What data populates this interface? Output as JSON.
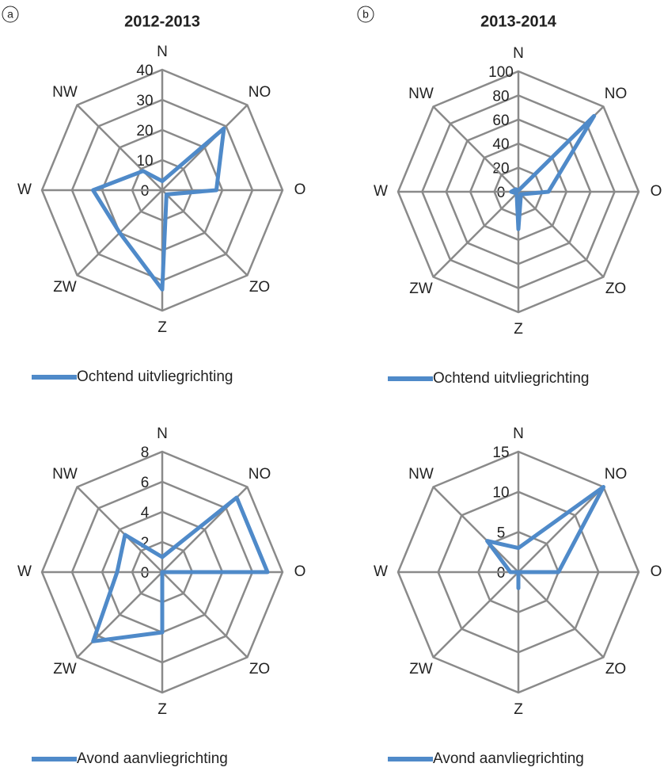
{
  "chart_data": [
    {
      "type": "radar",
      "panel_label": "a",
      "title": "2012-2013",
      "categories": [
        "N",
        "NO",
        "O",
        "ZO",
        "Z",
        "ZW",
        "W",
        "NW"
      ],
      "series": [
        {
          "name": "Ochtend uitvliegrichting",
          "color": "#4f8ac9",
          "values": [
            3,
            29,
            18,
            2,
            33,
            20,
            23,
            9
          ]
        }
      ],
      "rlim": [
        0,
        40
      ],
      "rticks": [
        0,
        10,
        20,
        30,
        40
      ]
    },
    {
      "type": "radar",
      "panel_label": "b",
      "title": "2013-2014",
      "categories": [
        "N",
        "NO",
        "O",
        "ZO",
        "Z",
        "ZW",
        "W",
        "NW"
      ],
      "series": [
        {
          "name": "Ochtend uitvliegrichting",
          "color": "#4f8ac9",
          "values": [
            1,
            89,
            25,
            3,
            31,
            2,
            6,
            3
          ]
        }
      ],
      "rlim": [
        0,
        100
      ],
      "rticks": [
        0,
        20,
        40,
        60,
        80,
        100
      ]
    },
    {
      "type": "radar",
      "categories": [
        "N",
        "NO",
        "O",
        "ZO",
        "Z",
        "ZW",
        "W",
        "NW"
      ],
      "series": [
        {
          "name": "Avond aanvliegrichting",
          "color": "#4f8ac9",
          "values": [
            1,
            7,
            7,
            0,
            4,
            6.5,
            3,
            3.5
          ]
        }
      ],
      "rlim": [
        0,
        8
      ],
      "rticks": [
        0,
        2,
        4,
        6,
        8
      ]
    },
    {
      "type": "radar",
      "categories": [
        "N",
        "NO",
        "O",
        "ZO",
        "Z",
        "ZW",
        "W",
        "NW"
      ],
      "series": [
        {
          "name": "Avond aanvliegrichting",
          "color": "#4f8ac9",
          "values": [
            3,
            15,
            5,
            0,
            2,
            0,
            1,
            5.5
          ]
        }
      ],
      "rlim": [
        0,
        15
      ],
      "rticks": [
        0,
        5,
        10,
        15
      ]
    }
  ]
}
